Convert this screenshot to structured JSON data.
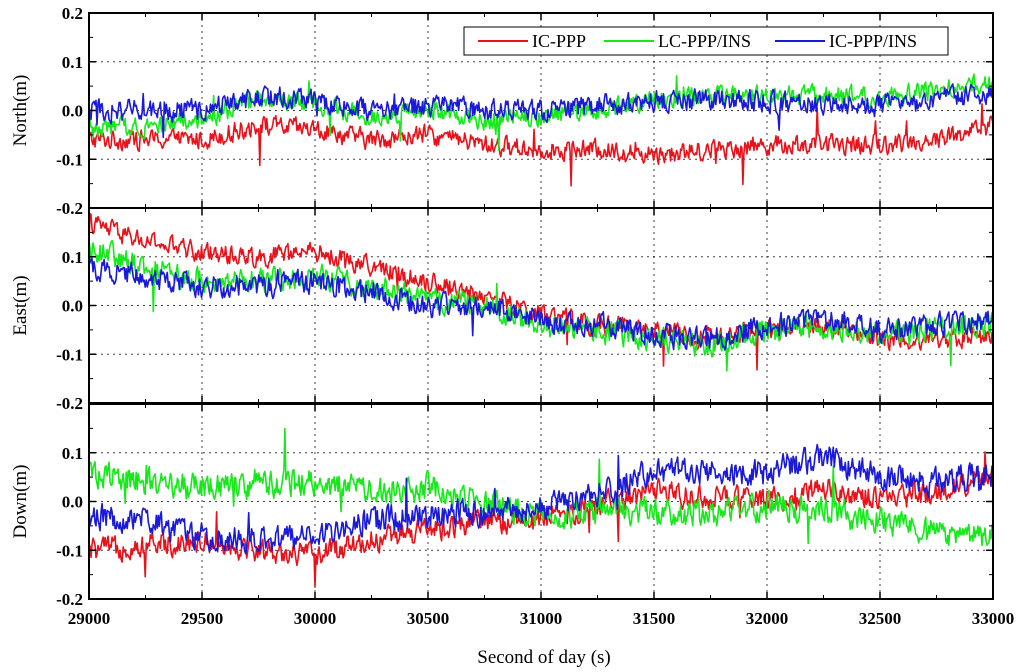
{
  "chart_data": {
    "type": "line",
    "xlabel": "Second of day (s)",
    "xlim": [
      29000,
      33000
    ],
    "xticks": [
      29000,
      29500,
      30000,
      30500,
      31000,
      31500,
      32000,
      32500,
      33000
    ],
    "x_tick_labels": [
      "29000",
      "29500",
      "30000",
      "30500",
      "31000",
      "31500",
      "32000",
      "32500",
      "33000"
    ],
    "grid": true,
    "legend": {
      "placement": "top-right",
      "entries": [
        {
          "name": "IC-PPP",
          "color": "#e8121b"
        },
        {
          "name": "LC-PPP/INS",
          "color": "#17e81b"
        },
        {
          "name": "IC-PPP/INS",
          "color": "#1a1ad8"
        }
      ]
    },
    "panels": [
      {
        "ylabel": "North(m)",
        "ylim": [
          -0.2,
          0.2
        ],
        "yticks": [
          0.2,
          0.1,
          0.0,
          -0.1,
          -0.2
        ],
        "y_tick_labels": [
          "0.2",
          "0.1",
          "0.0",
          "-0.1",
          "-0.2"
        ],
        "x": [
          29000,
          29250,
          29500,
          29750,
          30000,
          30250,
          30500,
          30750,
          31000,
          31250,
          31500,
          31750,
          32000,
          32250,
          32500,
          32750,
          33000
        ],
        "series": [
          {
            "name": "IC-PPP",
            "values": [
              -0.06,
              -0.06,
              -0.06,
              -0.03,
              -0.04,
              -0.06,
              -0.05,
              -0.07,
              -0.08,
              -0.08,
              -0.09,
              -0.08,
              -0.07,
              -0.07,
              -0.07,
              -0.06,
              -0.03
            ],
            "noise": 0.018
          },
          {
            "name": "LC-PPP/INS",
            "values": [
              -0.04,
              -0.03,
              -0.02,
              0.02,
              0.01,
              -0.01,
              0.0,
              -0.02,
              -0.01,
              0.0,
              0.02,
              0.03,
              0.03,
              0.03,
              0.03,
              0.04,
              0.06
            ],
            "noise": 0.018
          },
          {
            "name": "IC-PPP/INS",
            "values": [
              0.0,
              0.0,
              0.0,
              0.03,
              0.02,
              0.0,
              0.01,
              0.0,
              0.0,
              0.01,
              0.02,
              0.02,
              0.02,
              0.01,
              0.01,
              0.02,
              0.04
            ],
            "noise": 0.02
          }
        ]
      },
      {
        "ylabel": "East(m)",
        "ylim": [
          -0.2,
          0.2
        ],
        "yticks": [
          0.2,
          0.1,
          0.0,
          -0.1,
          -0.2
        ],
        "y_tick_labels": [
          "",
          "0.1",
          "0.0",
          "-0.1",
          "-0.2"
        ],
        "x": [
          29000,
          29250,
          29500,
          29750,
          30000,
          30250,
          30500,
          30750,
          31000,
          31250,
          31500,
          31750,
          32000,
          32250,
          32500,
          32750,
          33000
        ],
        "series": [
          {
            "name": "IC-PPP",
            "values": [
              0.17,
              0.13,
              0.11,
              0.1,
              0.11,
              0.08,
              0.05,
              0.02,
              -0.02,
              -0.04,
              -0.05,
              -0.07,
              -0.05,
              -0.04,
              -0.07,
              -0.07,
              -0.06
            ],
            "noise": 0.018
          },
          {
            "name": "LC-PPP/INS",
            "values": [
              0.12,
              0.08,
              0.05,
              0.05,
              0.06,
              0.04,
              0.01,
              0.0,
              -0.04,
              -0.05,
              -0.07,
              -0.08,
              -0.05,
              -0.04,
              -0.06,
              -0.05,
              -0.04
            ],
            "noise": 0.022
          },
          {
            "name": "IC-PPP/INS",
            "values": [
              0.08,
              0.06,
              0.04,
              0.04,
              0.05,
              0.03,
              0.0,
              0.0,
              -0.03,
              -0.04,
              -0.06,
              -0.07,
              -0.04,
              -0.03,
              -0.05,
              -0.04,
              -0.03
            ],
            "noise": 0.022
          }
        ]
      },
      {
        "ylabel": "Down(m)",
        "ylim": [
          -0.2,
          0.2
        ],
        "yticks": [
          0.2,
          0.1,
          0.0,
          -0.1,
          -0.2
        ],
        "y_tick_labels": [
          "",
          "0.1",
          "0.0",
          "-0.1",
          "-0.2"
        ],
        "x": [
          29000,
          29250,
          29500,
          29750,
          30000,
          30250,
          30500,
          30750,
          31000,
          31250,
          31500,
          31750,
          32000,
          32250,
          32500,
          32750,
          33000
        ],
        "series": [
          {
            "name": "IC-PPP",
            "values": [
              -0.1,
              -0.09,
              -0.08,
              -0.1,
              -0.11,
              -0.08,
              -0.06,
              -0.04,
              -0.04,
              -0.01,
              0.02,
              0.01,
              0.0,
              0.03,
              0.0,
              0.02,
              0.05
            ],
            "noise": 0.022
          },
          {
            "name": "LC-PPP/INS",
            "values": [
              0.06,
              0.04,
              0.03,
              0.03,
              0.04,
              0.02,
              0.03,
              0.0,
              -0.03,
              -0.02,
              -0.02,
              -0.03,
              -0.01,
              -0.02,
              -0.04,
              -0.07,
              -0.07
            ],
            "noise": 0.025
          },
          {
            "name": "IC-PPP/INS",
            "values": [
              -0.03,
              -0.04,
              -0.07,
              -0.08,
              -0.07,
              -0.04,
              -0.03,
              -0.02,
              -0.01,
              0.02,
              0.06,
              0.06,
              0.06,
              0.09,
              0.05,
              0.04,
              0.06
            ],
            "noise": 0.025
          }
        ]
      }
    ]
  }
}
